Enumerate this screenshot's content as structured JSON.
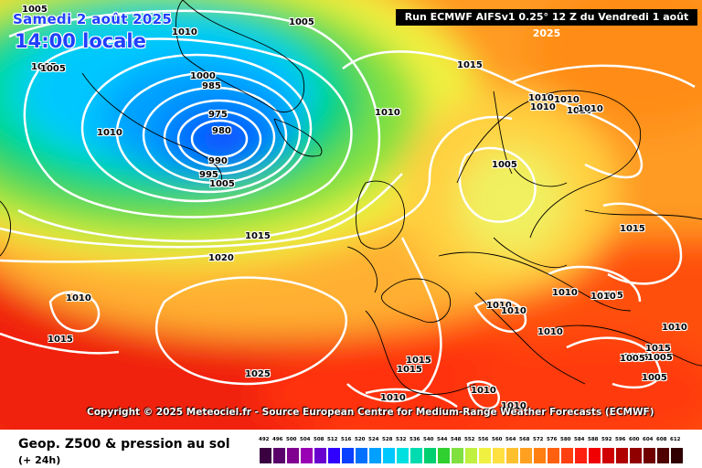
{
  "header": {
    "date": "Samedi 2 août 2025",
    "local_time": "14:00 locale",
    "run_info": "Run ECMWF AIFSv1 0.25° 12 Z du Vendredi 1 août 2025"
  },
  "copyright": "Copyright © 2025 Meteociel.fr - Source European Centre for Medium-Range Weather Forecasts (ECMWF)",
  "footer": {
    "title": "Geop. Z500 & pression au sol",
    "subtitle": "(+ 24h)"
  },
  "legend": {
    "values": [
      "492",
      "496",
      "500",
      "504",
      "508",
      "512",
      "516",
      "520",
      "524",
      "528",
      "532",
      "536",
      "540",
      "544",
      "548",
      "552",
      "556",
      "560",
      "564",
      "568",
      "572",
      "576",
      "580",
      "584",
      "588",
      "592",
      "596",
      "600",
      "604",
      "608",
      "612"
    ],
    "colors": [
      "#3a0040",
      "#5a006a",
      "#80008f",
      "#9a00b4",
      "#6a00d0",
      "#3000ff",
      "#0a40ff",
      "#0070ff",
      "#00a0ff",
      "#00c8ff",
      "#00e0e0",
      "#00dcb0",
      "#00d070",
      "#30d030",
      "#80e040",
      "#c0f040",
      "#f0f040",
      "#ffe040",
      "#ffc030",
      "#ffa020",
      "#ff8010",
      "#ff6010",
      "#ff4010",
      "#ff2010",
      "#f00000",
      "#d00000",
      "#b00000",
      "#900000",
      "#700000",
      "#500000",
      "#300000"
    ]
  },
  "pressure_labels": [
    {
      "text": "1005"
    },
    {
      "text": "1010"
    },
    {
      "text": "1005"
    },
    {
      "text": "1005"
    },
    {
      "text": "1005"
    },
    {
      "text": "1000"
    },
    {
      "text": "985"
    },
    {
      "text": "975"
    },
    {
      "text": "980"
    },
    {
      "text": "990"
    },
    {
      "text": "995"
    },
    {
      "text": "1005"
    },
    {
      "text": "1010"
    },
    {
      "text": "1015"
    },
    {
      "text": "1010"
    },
    {
      "text": "1010"
    },
    {
      "text": "1010"
    },
    {
      "text": "1005"
    },
    {
      "text": "1015"
    },
    {
      "text": "1015"
    },
    {
      "text": "1020"
    },
    {
      "text": "1010"
    },
    {
      "text": "1015"
    },
    {
      "text": "1025"
    },
    {
      "text": "1010"
    },
    {
      "text": "1010"
    },
    {
      "text": "1010"
    },
    {
      "text": "1010"
    },
    {
      "text": "1015"
    },
    {
      "text": "1010"
    },
    {
      "text": "1015"
    },
    {
      "text": "1015"
    },
    {
      "text": "1010"
    },
    {
      "text": "1010"
    },
    {
      "text": "1010"
    },
    {
      "text": "1015"
    },
    {
      "text": "1010"
    },
    {
      "text": "1005"
    },
    {
      "text": "1005"
    },
    {
      "text": "1005"
    },
    {
      "text": "1010"
    },
    {
      "text": "1005"
    },
    {
      "text": "1010"
    },
    {
      "text": "1010"
    }
  ]
}
